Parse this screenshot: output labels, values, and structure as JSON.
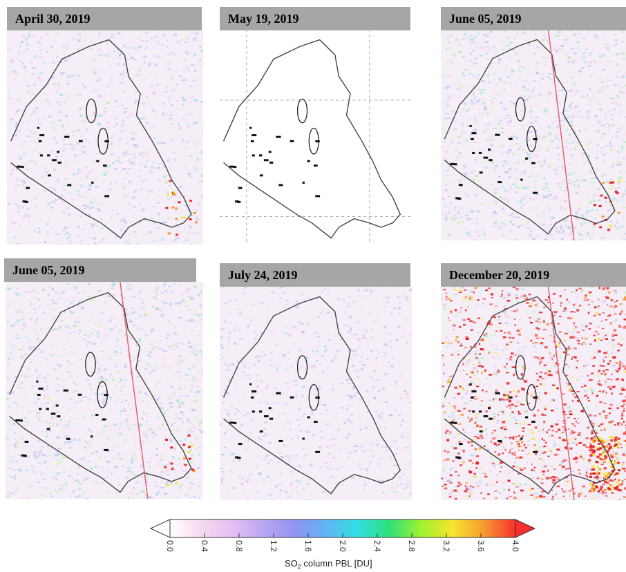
{
  "panels": [
    {
      "date": "April 30, 2019",
      "intensity": "low-moderate",
      "orbit_line": false
    },
    {
      "date": "May 19, 2019",
      "intensity": "none",
      "orbit_line": false
    },
    {
      "date": "June 05, 2019",
      "intensity": "moderate",
      "orbit_line": true
    },
    {
      "date": "June 05, 2019",
      "intensity": "moderate",
      "orbit_line": true
    },
    {
      "date": "July 24, 2019",
      "intensity": "low",
      "orbit_line": false
    },
    {
      "date": "December 20, 2019",
      "intensity": "high",
      "orbit_line": true
    }
  ],
  "colorbar": {
    "ticks": [
      "0.0",
      "0.4",
      "0.8",
      "1.2",
      "1.6",
      "2.0",
      "2.4",
      "2.8",
      "3.2",
      "3.6",
      "4.0"
    ],
    "label_prefix": "SO",
    "label_sub": "2",
    "label_suffix": " column PBL [DU]",
    "colors": [
      "#ffffff",
      "#f7d9f0",
      "#e2bff2",
      "#b9a6f2",
      "#8f93f2",
      "#5fb6f5",
      "#2fe0e0",
      "#2fe07a",
      "#9ef22f",
      "#f7e52f",
      "#f79a2f",
      "#f5302f"
    ]
  }
}
